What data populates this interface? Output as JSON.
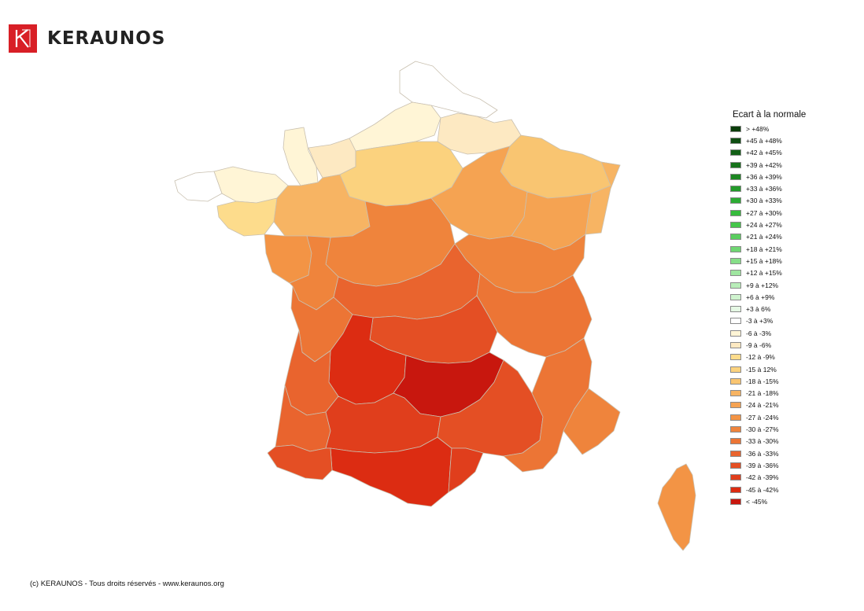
{
  "brand": {
    "name": "KERAUNOS",
    "logo_letter": "K",
    "accent_color": "#d81f26"
  },
  "legend": {
    "title": "Ecart à la normale",
    "items": [
      {
        "label": "> +48%",
        "color": "#0b3d0b"
      },
      {
        "label": "+45 à +48%",
        "color": "#0e4d12"
      },
      {
        "label": "+42 à +45%",
        "color": "#126016"
      },
      {
        "label": "+39 à +42%",
        "color": "#17721b"
      },
      {
        "label": "+36 à +39%",
        "color": "#1d8722"
      },
      {
        "label": "+33 à +36%",
        "color": "#249a2a"
      },
      {
        "label": "+30 à +33%",
        "color": "#2cab33"
      },
      {
        "label": "+27 à +30%",
        "color": "#36bb3d"
      },
      {
        "label": "+24 à +27%",
        "color": "#45c64b"
      },
      {
        "label": "+21 à +24%",
        "color": "#5ace5f"
      },
      {
        "label": "+18 à +21%",
        "color": "#6fd672"
      },
      {
        "label": "+15 à +18%",
        "color": "#86de88"
      },
      {
        "label": "+12 à +15%",
        "color": "#9fe6a0"
      },
      {
        "label": "+9 à +12%",
        "color": "#b8edb8"
      },
      {
        "label": "+6 à +9%",
        "color": "#cff3ce"
      },
      {
        "label": "+3 à 6%",
        "color": "#e5f8e4"
      },
      {
        "label": "-3 à +3%",
        "color": "#ffffff"
      },
      {
        "label": "-6 à -3%",
        "color": "#fff5d6"
      },
      {
        "label": "-9 à -6%",
        "color": "#fde9c2"
      },
      {
        "label": "-12 à -9%",
        "color": "#fddc8c"
      },
      {
        "label": "-15 à 12%",
        "color": "#fbd27e"
      },
      {
        "label": "-18 à -15%",
        "color": "#f9c571"
      },
      {
        "label": "-21 à -18%",
        "color": "#f7b463"
      },
      {
        "label": "-24 à -21%",
        "color": "#f5a352"
      },
      {
        "label": "-27 à -24%",
        "color": "#f39445"
      },
      {
        "label": "-30 à -27%",
        "color": "#ef843c"
      },
      {
        "label": "-33 à -30%",
        "color": "#ec7535"
      },
      {
        "label": "-36 à -33%",
        "color": "#e9642e"
      },
      {
        "label": "-39 à -36%",
        "color": "#e44f24"
      },
      {
        "label": "-42 à -39%",
        "color": "#e03e1c"
      },
      {
        "label": "-45 à -42%",
        "color": "#dc2c12"
      },
      {
        "label": "< -45%",
        "color": "#c8170e"
      }
    ]
  },
  "map_regions": [
    {
      "name": "nord-pas-de-calais",
      "category": "-3 à +3%",
      "color": "#ffffff"
    },
    {
      "name": "normandie-ouest",
      "category": "-6 à -3%",
      "color": "#fff5d6"
    },
    {
      "name": "bretagne-nord",
      "category": "-6 à -3%",
      "color": "#fff5d6"
    },
    {
      "name": "bretagne-ouest",
      "category": "-3 à +3%",
      "color": "#ffffff"
    },
    {
      "name": "picardie",
      "category": "-6 à -3%",
      "color": "#fff5d6"
    },
    {
      "name": "champagne-nord",
      "category": "-9 à -6%",
      "color": "#fde9c2"
    },
    {
      "name": "normandie-est",
      "category": "-9 à -6%",
      "color": "#fde9c2"
    },
    {
      "name": "bretagne-sud",
      "category": "-12 à -9%",
      "color": "#fddc8c"
    },
    {
      "name": "centre-nord",
      "category": "-15 à 12%",
      "color": "#fbd27e"
    },
    {
      "name": "lorraine",
      "category": "-18 à -15%",
      "color": "#f9c571"
    },
    {
      "name": "alsace",
      "category": "-21 à -18%",
      "color": "#f7b463"
    },
    {
      "name": "pays-de-la-loire",
      "category": "-21 à -18%",
      "color": "#f7b463"
    },
    {
      "name": "bourgogne",
      "category": "-24 à -21%",
      "color": "#f5a352"
    },
    {
      "name": "franche-comte",
      "category": "-24 à -21%",
      "color": "#f5a352"
    },
    {
      "name": "vendee",
      "category": "-27 à -24%",
      "color": "#f39445"
    },
    {
      "name": "centre-sud",
      "category": "-30 à -27%",
      "color": "#ef843c"
    },
    {
      "name": "rhone-alpes-nord",
      "category": "-30 à -27%",
      "color": "#ef843c"
    },
    {
      "name": "poitou",
      "category": "-30 à -27%",
      "color": "#ef843c"
    },
    {
      "name": "limousin",
      "category": "-36 à -33%",
      "color": "#e9642e"
    },
    {
      "name": "rhone-alpes-sud",
      "category": "-33 à -30%",
      "color": "#ec7535"
    },
    {
      "name": "charente",
      "category": "-33 à -30%",
      "color": "#ec7535"
    },
    {
      "name": "auvergne",
      "category": "-39 à -36%",
      "color": "#e44f24"
    },
    {
      "name": "dordogne-lot",
      "category": "-45 à -42%",
      "color": "#dc2c12"
    },
    {
      "name": "aveyron-cantal",
      "category": "< -45%",
      "color": "#c8170e"
    },
    {
      "name": "gironde",
      "category": "-36 à -33%",
      "color": "#e9642e"
    },
    {
      "name": "landes",
      "category": "-36 à -33%",
      "color": "#e9642e"
    },
    {
      "name": "gers-tarn",
      "category": "-42 à -39%",
      "color": "#e03e1c"
    },
    {
      "name": "midi-pyrenees-sud",
      "category": "-45 à -42%",
      "color": "#dc2c12"
    },
    {
      "name": "gard-herault",
      "category": "-39 à -36%",
      "color": "#e44f24"
    },
    {
      "name": "pyrenees-atlantiques",
      "category": "-39 à -36%",
      "color": "#e44f24"
    },
    {
      "name": "pyrenees-orientales",
      "category": "-42 à -39%",
      "color": "#e03e1c"
    },
    {
      "name": "provence",
      "category": "-33 à -30%",
      "color": "#ec7535"
    },
    {
      "name": "alpes-maritimes",
      "category": "-30 à -27%",
      "color": "#ef843c"
    },
    {
      "name": "corse",
      "category": "-27 à -24%",
      "color": "#f39445"
    }
  ],
  "footer": {
    "copyright": "(c) KERAUNOS - Tous droits réservés - www.keraunos.org"
  }
}
